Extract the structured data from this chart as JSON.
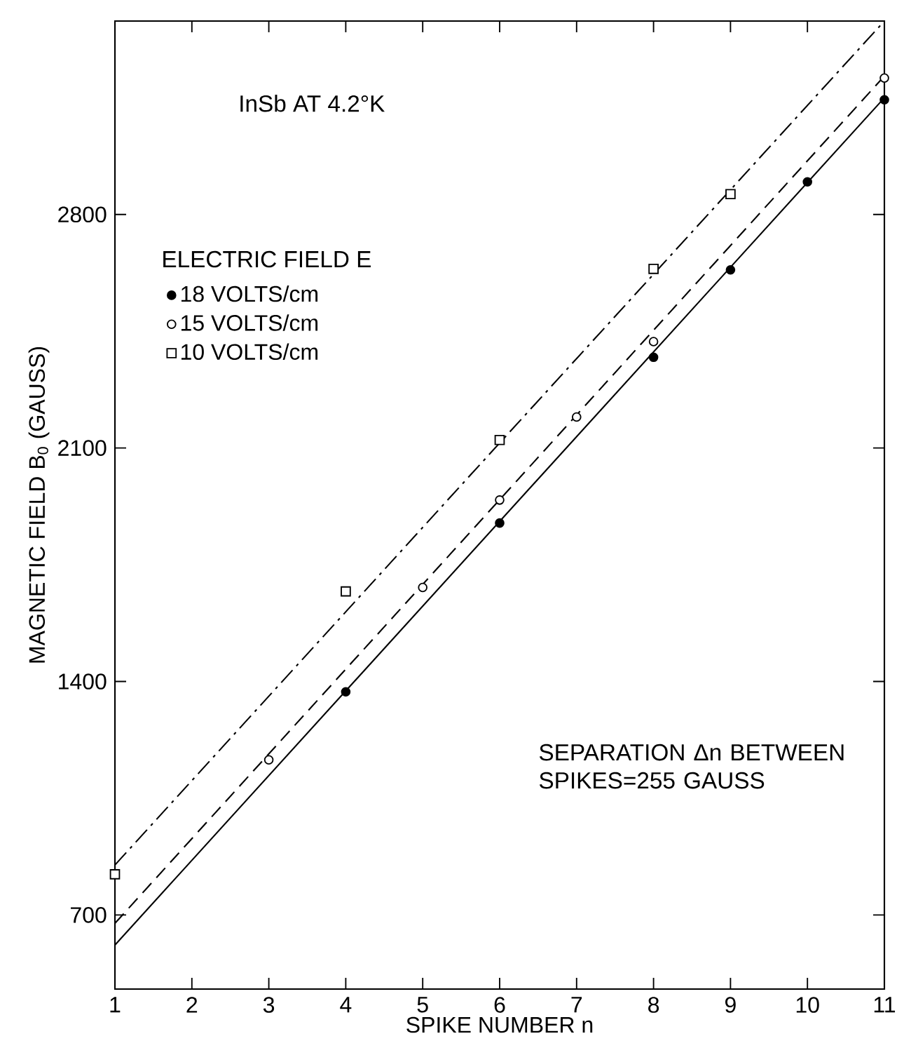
{
  "chart_data": {
    "type": "scatter",
    "xlabel": "SPIKE NUMBER n",
    "ylabel": "MAGNETIC FIELD B$_{0}$ (GAUSS)",
    "legend_title": "ELECTRIC FIELD E",
    "annotations": [
      "InSb AT 4.2°K",
      "SEPARATION Δn BETWEEN SPIKES=255 GAUSS"
    ],
    "xlim": [
      1,
      11
    ],
    "xticks": [
      1,
      2,
      3,
      4,
      5,
      6,
      7,
      8,
      9,
      10,
      11
    ],
    "ylim": [
      478,
      3380
    ],
    "yticks": [
      700,
      1400,
      2100,
      2800
    ],
    "grid": false,
    "legend": "top left",
    "series": [
      {
        "name": "18 VOLTS/cm",
        "marker": "circle",
        "color": "#000000",
        "x": [
          4,
          6,
          8,
          9,
          10,
          11
        ],
        "values": [
          1369,
          1875,
          2372,
          2634,
          2898,
          3144
        ]
      },
      {
        "name": "15 VOLTS/cm",
        "marker": "circle",
        "color": "#ffffff",
        "x": [
          3,
          5,
          6,
          7,
          8,
          11
        ],
        "values": [
          1165,
          1682,
          1944,
          2193,
          2419,
          3209
        ]
      },
      {
        "name": "10 VOLTS/cm",
        "marker": "square",
        "color": "#ffffff",
        "x": [
          1,
          4,
          6,
          8,
          9
        ],
        "values": [
          822,
          1670,
          2124,
          2637,
          2861
        ]
      },
      {
        "type": "line",
        "line_style": "solid",
        "color": "#000000",
        "x": [
          1,
          11
        ],
        "values": [
          610,
          3150
        ]
      },
      {
        "type": "line",
        "line_style": "dashed",
        "color": "#000000",
        "x": [
          1,
          11
        ],
        "values": [
          675,
          3215
        ]
      },
      {
        "type": "line",
        "line_style": "dashdot",
        "color": "#000000",
        "x": [
          1,
          11
        ],
        "values": [
          850,
          3380
        ]
      }
    ]
  }
}
